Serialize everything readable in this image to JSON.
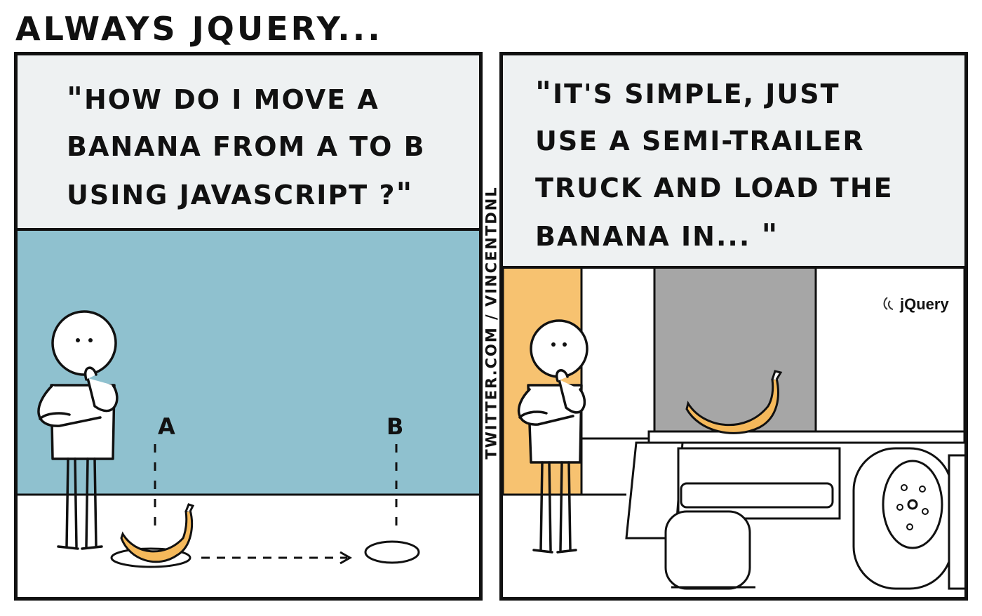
{
  "comic": {
    "title": "ALWAYS JQUERY...",
    "credit": "TWITTER.COM / VINCENTDNL"
  },
  "panel_left": {
    "caption_lines": [
      "HOW DO I MOVE A",
      "BANANA FROM A TO B",
      "USING JAVASCRIPT ?"
    ],
    "label_a": "A",
    "label_b": "B"
  },
  "panel_right": {
    "caption_lines": [
      "IT'S SIMPLE, JUST",
      "USE A SEMI-TRAILER",
      "TRUCK AND LOAD THE",
      "BANANA IN..."
    ],
    "truck_logo": "jQuery"
  },
  "colors": {
    "outline": "#111111",
    "caption_bg": "#eef1f2",
    "wall_blue": "#8fc1cf",
    "banana": "#f5b95b",
    "orange_wall": "#f7c270",
    "truck_gray": "#a6a6a6"
  }
}
